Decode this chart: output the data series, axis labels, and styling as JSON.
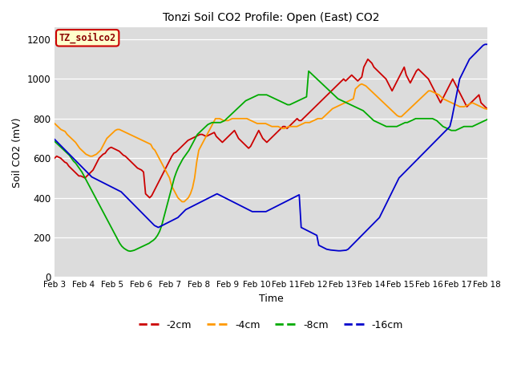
{
  "title": "Tonzi Soil CO2 Profile: Open (East) CO2",
  "xlabel": "Time",
  "ylabel": "Soil CO2 (mV)",
  "ylim": [
    0,
    1260
  ],
  "background_color": "#ffffff",
  "plot_bg_color": "#dcdcdc",
  "label_box_text": "TZ_soilco2",
  "label_box_bg": "#ffffcc",
  "label_box_edge": "#cc0000",
  "xtick_labels": [
    "Feb 3",
    "Feb 4",
    "Feb 5",
    "Feb 6",
    "Feb 7",
    "Feb 8",
    "Feb 9",
    "Feb 10",
    "Feb 11",
    "Feb 12",
    "Feb 13",
    "Feb 14",
    "Feb 15",
    "Feb 16",
    "Feb 17",
    "Feb 18"
  ],
  "series": {
    "-2cm": {
      "color": "#cc0000",
      "data": [
        600,
        610,
        605,
        600,
        590,
        580,
        575,
        560,
        550,
        540,
        530,
        520,
        510,
        510,
        505,
        500,
        510,
        520,
        530,
        540,
        560,
        580,
        600,
        610,
        620,
        625,
        640,
        650,
        655,
        650,
        645,
        640,
        635,
        625,
        615,
        610,
        600,
        590,
        580,
        570,
        560,
        550,
        545,
        540,
        530,
        420,
        410,
        400,
        410,
        430,
        450,
        470,
        490,
        510,
        530,
        550,
        570,
        590,
        610,
        625,
        630,
        640,
        650,
        660,
        670,
        680,
        690,
        695,
        700,
        705,
        710,
        715,
        720,
        720,
        715,
        710,
        715,
        720,
        725,
        730,
        710,
        700,
        690,
        680,
        690,
        700,
        710,
        720,
        730,
        740,
        720,
        700,
        690,
        680,
        670,
        660,
        650,
        660,
        680,
        700,
        720,
        740,
        720,
        700,
        690,
        680,
        690,
        700,
        710,
        720,
        730,
        740,
        750,
        760,
        760,
        750,
        760,
        770,
        780,
        790,
        800,
        790,
        790,
        800,
        810,
        820,
        830,
        840,
        850,
        860,
        870,
        880,
        890,
        900,
        910,
        920,
        930,
        940,
        950,
        960,
        970,
        980,
        990,
        1000,
        990,
        1000,
        1010,
        1020,
        1010,
        1000,
        990,
        1000,
        1010,
        1060,
        1080,
        1100,
        1090,
        1080,
        1060,
        1050,
        1040,
        1030,
        1020,
        1010,
        1000,
        980,
        960,
        940,
        960,
        980,
        1000,
        1020,
        1040,
        1060,
        1020,
        1000,
        980,
        1000,
        1020,
        1040,
        1050,
        1040,
        1030,
        1020,
        1010,
        1000,
        980,
        960,
        940,
        920,
        900,
        880,
        900,
        920,
        940,
        960,
        980,
        1000,
        980,
        960,
        940,
        920,
        900,
        880,
        860,
        870,
        880,
        890,
        900,
        910,
        920,
        880,
        870,
        860,
        850
      ]
    },
    "-4cm": {
      "color": "#ff9900",
      "data": [
        775,
        765,
        755,
        745,
        740,
        735,
        720,
        710,
        700,
        690,
        680,
        665,
        650,
        640,
        630,
        620,
        615,
        610,
        610,
        615,
        620,
        630,
        640,
        660,
        680,
        700,
        710,
        720,
        730,
        740,
        745,
        745,
        740,
        735,
        730,
        725,
        720,
        715,
        710,
        705,
        700,
        695,
        690,
        685,
        680,
        675,
        670,
        650,
        640,
        620,
        600,
        580,
        560,
        540,
        520,
        500,
        460,
        440,
        420,
        400,
        390,
        380,
        380,
        390,
        400,
        420,
        450,
        500,
        580,
        640,
        660,
        680,
        700,
        720,
        740,
        760,
        780,
        800,
        800,
        800,
        795,
        790,
        790,
        790,
        795,
        800,
        800,
        800,
        800,
        800,
        800,
        800,
        800,
        795,
        790,
        785,
        780,
        775,
        775,
        775,
        775,
        775,
        770,
        765,
        760,
        760,
        760,
        760,
        755,
        750,
        750,
        755,
        760,
        760,
        760,
        760,
        760,
        765,
        770,
        775,
        780,
        780,
        780,
        785,
        790,
        795,
        800,
        800,
        800,
        810,
        820,
        830,
        840,
        850,
        855,
        860,
        865,
        870,
        875,
        880,
        885,
        890,
        895,
        900,
        950,
        960,
        970,
        975,
        970,
        965,
        955,
        945,
        935,
        925,
        915,
        905,
        895,
        885,
        875,
        865,
        855,
        845,
        835,
        825,
        815,
        810,
        810,
        820,
        830,
        840,
        850,
        860,
        870,
        880,
        890,
        900,
        910,
        920,
        930,
        940,
        940,
        935,
        930,
        925,
        920,
        910,
        900,
        895,
        890,
        885,
        880,
        875,
        870,
        865,
        860,
        860,
        860,
        865,
        870,
        875,
        880,
        875,
        870,
        865,
        860,
        855,
        850,
        848
      ]
    },
    "-8cm": {
      "color": "#00aa00",
      "data": [
        685,
        675,
        665,
        655,
        645,
        635,
        625,
        615,
        600,
        585,
        575,
        560,
        545,
        530,
        510,
        490,
        470,
        450,
        430,
        410,
        390,
        370,
        350,
        330,
        310,
        290,
        270,
        250,
        230,
        210,
        190,
        170,
        155,
        145,
        138,
        132,
        130,
        132,
        135,
        140,
        145,
        150,
        155,
        160,
        165,
        170,
        178,
        185,
        195,
        210,
        230,
        260,
        300,
        340,
        380,
        420,
        460,
        500,
        530,
        555,
        575,
        595,
        610,
        625,
        640,
        660,
        680,
        700,
        720,
        730,
        740,
        750,
        760,
        770,
        775,
        780,
        780,
        780,
        780,
        780,
        785,
        790,
        800,
        810,
        820,
        830,
        840,
        850,
        860,
        870,
        880,
        890,
        895,
        900,
        905,
        910,
        915,
        920,
        920,
        920,
        920,
        920,
        915,
        910,
        905,
        900,
        895,
        890,
        885,
        880,
        875,
        870,
        870,
        875,
        880,
        885,
        890,
        895,
        900,
        905,
        910,
        1040,
        1030,
        1020,
        1010,
        1000,
        990,
        980,
        970,
        960,
        950,
        940,
        930,
        920,
        910,
        900,
        895,
        890,
        885,
        880,
        875,
        870,
        865,
        860,
        855,
        850,
        845,
        840,
        830,
        820,
        810,
        800,
        790,
        785,
        780,
        775,
        770,
        765,
        760,
        760,
        760,
        760,
        760,
        760,
        765,
        770,
        775,
        780,
        780,
        785,
        790,
        795,
        800,
        800,
        800,
        800,
        800,
        800,
        800,
        800,
        800,
        795,
        790,
        780,
        770,
        760,
        755,
        750,
        745,
        740,
        740,
        740,
        745,
        750,
        755,
        760,
        760,
        760,
        760,
        760,
        765,
        770,
        775,
        780,
        785,
        790,
        795
      ]
    },
    "-16cm": {
      "color": "#0000cc",
      "data": [
        695,
        685,
        675,
        665,
        655,
        645,
        635,
        625,
        615,
        605,
        595,
        585,
        575,
        565,
        555,
        545,
        535,
        525,
        515,
        505,
        500,
        495,
        490,
        485,
        480,
        475,
        470,
        465,
        460,
        455,
        450,
        445,
        440,
        435,
        430,
        420,
        410,
        400,
        390,
        380,
        370,
        360,
        350,
        340,
        330,
        320,
        310,
        300,
        290,
        280,
        270,
        260,
        255,
        250,
        255,
        260,
        265,
        270,
        275,
        280,
        285,
        290,
        295,
        300,
        310,
        320,
        330,
        340,
        345,
        350,
        355,
        360,
        365,
        370,
        375,
        380,
        385,
        390,
        395,
        400,
        405,
        410,
        415,
        420,
        415,
        410,
        405,
        400,
        395,
        390,
        385,
        380,
        375,
        370,
        365,
        360,
        355,
        350,
        345,
        340,
        335,
        330,
        330,
        330,
        330,
        330,
        330,
        330,
        330,
        335,
        340,
        345,
        350,
        355,
        360,
        365,
        370,
        375,
        380,
        385,
        390,
        395,
        400,
        405,
        410,
        415,
        250,
        245,
        240,
        235,
        230,
        225,
        220,
        215,
        210,
        160,
        155,
        150,
        145,
        140,
        138,
        136,
        135,
        134,
        133,
        132,
        132,
        133,
        134,
        135,
        140,
        150,
        160,
        170,
        180,
        190,
        200,
        210,
        220,
        230,
        240,
        250,
        260,
        270,
        280,
        290,
        300,
        320,
        340,
        360,
        380,
        400,
        420,
        440,
        460,
        480,
        500,
        510,
        520,
        530,
        540,
        550,
        560,
        570,
        580,
        590,
        600,
        610,
        620,
        630,
        640,
        650,
        660,
        670,
        680,
        690,
        700,
        710,
        720,
        730,
        740,
        750,
        760,
        800,
        850,
        900,
        950,
        1000,
        1020,
        1040,
        1060,
        1080,
        1100,
        1110,
        1120,
        1130,
        1140,
        1150,
        1160,
        1170,
        1175,
        1175
      ]
    }
  }
}
